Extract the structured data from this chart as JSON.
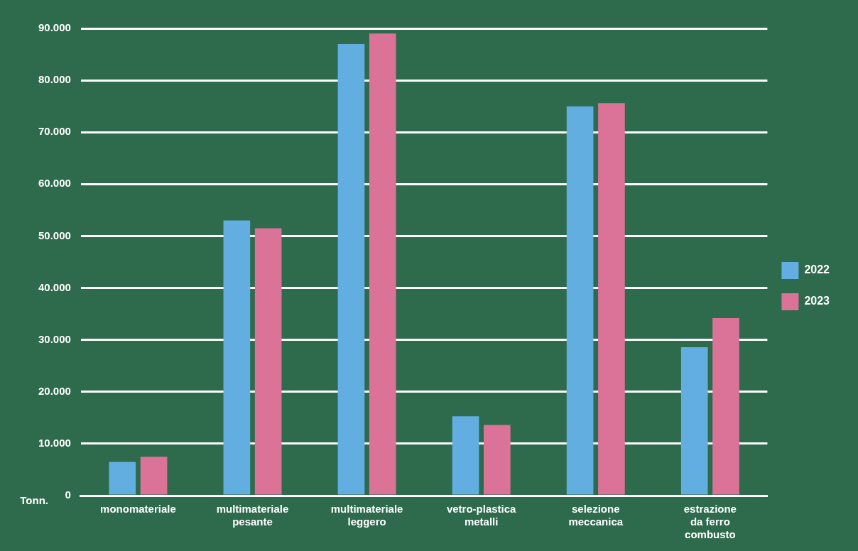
{
  "chart_data": {
    "type": "bar",
    "ylabel": "Tonn.",
    "categories": [
      "monomateriale",
      "multimateriale pesante",
      "multimateriale leggero",
      "vetro-plastica metalli",
      "selezione meccanica",
      "estrazione da ferro combusto"
    ],
    "series": [
      {
        "name": "2022",
        "color": "#62aee0",
        "values": [
          6500,
          53000,
          87000,
          15300,
          75000,
          28600
        ]
      },
      {
        "name": "2023",
        "color": "#db7399",
        "values": [
          7500,
          51500,
          89000,
          13600,
          75600,
          34200
        ]
      }
    ],
    "ylim": [
      0,
      90000
    ],
    "yticks": [
      0,
      {
        "value": 10000,
        "label": "10.000"
      },
      {
        "value": 20000,
        "label": "20.000"
      },
      {
        "value": 30000,
        "label": "30.000"
      },
      {
        "value": 40000,
        "label": "40.000"
      },
      {
        "value": 50000,
        "label": "50.000"
      },
      {
        "value": 60000,
        "label": "60.000"
      },
      {
        "value": 70000,
        "label": "70.000"
      },
      {
        "value": 80000,
        "label": "80.000"
      },
      {
        "value": 90000,
        "label": "90.000"
      }
    ],
    "grid": "y",
    "legend": "right"
  }
}
